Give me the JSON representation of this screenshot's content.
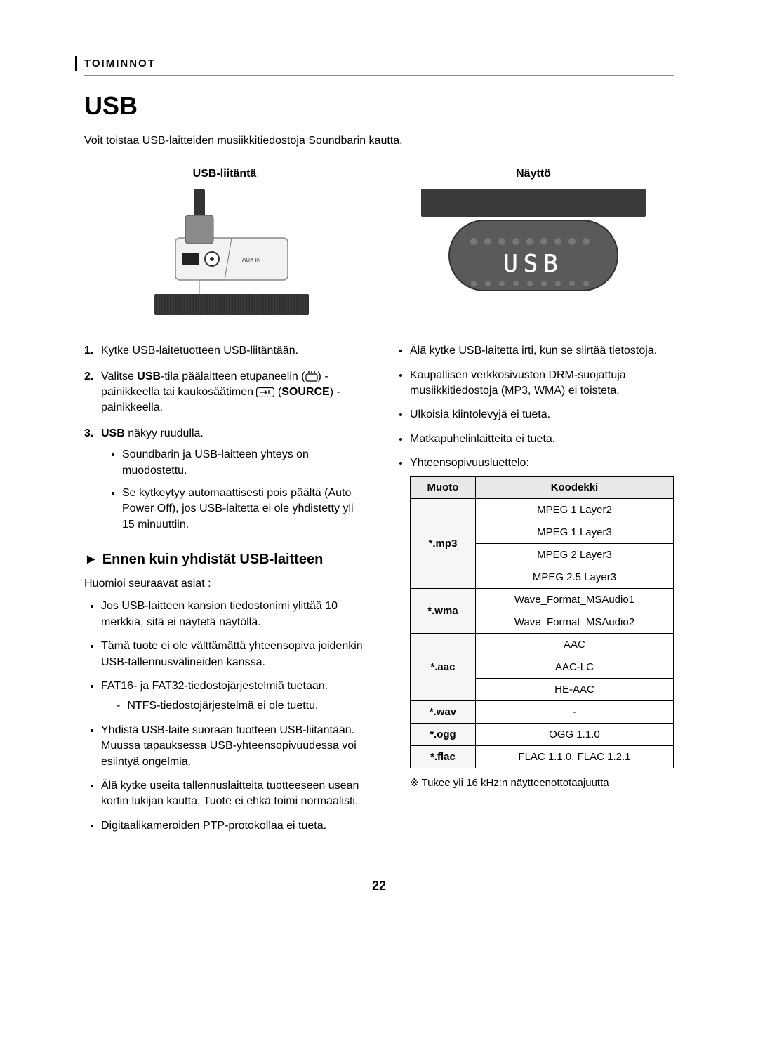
{
  "section_label": "TOIMINNOT",
  "title": "USB",
  "intro": "Voit toistaa USB-laitteiden musiikkitiedostoja Soundbarin kautta.",
  "top": {
    "left_heading": "USB-liitäntä",
    "right_heading": "Näyttö",
    "display_text": "USB"
  },
  "steps": {
    "s1": "Kytke USB-laitetuotteen USB-liitäntään.",
    "s2_prefix": "Valitse ",
    "s2_usb": "USB",
    "s2_mid1": "-tila päälaitteen etupaneelin (",
    "s2_mid2": ") -painikkeella tai kaukosäätimen ",
    "s2_source": "SOURCE",
    "s2_suffix": ") -painikkeella.",
    "s3_prefix": "USB",
    "s3_suffix": " näkyy ruudulla.",
    "s3_sub1": "Soundbarin ja USB-laitteen yhteys on muodostettu.",
    "s3_sub2": "Se kytkeytyy automaattisesti pois päältä (Auto Power Off), jos USB-laitetta ei ole yhdistetty yli 15 minuuttiin."
  },
  "subheading": "Ennen kuin yhdistät USB-laitteen",
  "sub_lead": "Huomioi seuraavat asiat :",
  "left_bullets": {
    "b1": "Jos USB-laitteen kansion tiedostonimi ylittää 10 merkkiä, sitä ei näytetä näytöllä.",
    "b2": "Tämä tuote ei ole välttämättä yhteensopiva joidenkin USB-tallennusvälineiden kanssa.",
    "b3": "FAT16- ja FAT32-tiedostojärjestelmiä tuetaan.",
    "b3_dash": "NTFS-tiedostojärjestelmä ei ole tuettu.",
    "b4": "Yhdistä USB-laite suoraan tuotteen USB-liitäntään. Muussa tapauksessa USB-yhteensopivuudessa voi esiintyä ongelmia.",
    "b5": "Älä kytke useita tallennuslaitteita tuotteeseen usean kortin lukijan kautta. Tuote ei ehkä toimi normaalisti.",
    "b6": "Digitaalikameroiden PTP-protokollaa ei tueta."
  },
  "right_bullets": {
    "b1": "Älä kytke USB-laitetta irti, kun se siirtää tietostoja.",
    "b2": "Kaupallisen verkkosivuston DRM-suojattuja musiikkitiedostoja (MP3, WMA) ei toisteta.",
    "b3": "Ulkoisia kiintolevyjä ei tueta.",
    "b4": "Matkapuhelinlaitteita ei tueta.",
    "b5": "Yhteensopivuusluettelo:"
  },
  "table": {
    "h1": "Muoto",
    "h2": "Koodekki",
    "rows": [
      {
        "fmt": "*.mp3",
        "codecs": [
          "MPEG 1 Layer2",
          "MPEG 1 Layer3",
          "MPEG 2 Layer3",
          "MPEG 2.5 Layer3"
        ]
      },
      {
        "fmt": "*.wma",
        "codecs": [
          "Wave_Format_MSAudio1",
          "Wave_Format_MSAudio2"
        ]
      },
      {
        "fmt": "*.aac",
        "codecs": [
          "AAC",
          "AAC-LC",
          "HE-AAC"
        ]
      },
      {
        "fmt": "*.wav",
        "codecs": [
          "-"
        ]
      },
      {
        "fmt": "*.ogg",
        "codecs": [
          "OGG 1.1.0"
        ]
      },
      {
        "fmt": "*.flac",
        "codecs": [
          "FLAC 1.1.0, FLAC 1.2.1"
        ]
      }
    ]
  },
  "footnote": "Tukee yli 16 kHz:n näytteenottotaajuutta",
  "footnote_marker": "※",
  "page_number": "22",
  "colors": {
    "background": "#ffffff",
    "text": "#000000",
    "table_header_bg": "#e8e8e8",
    "table_fmt_bg": "#f6f6f6",
    "border": "#000000"
  }
}
